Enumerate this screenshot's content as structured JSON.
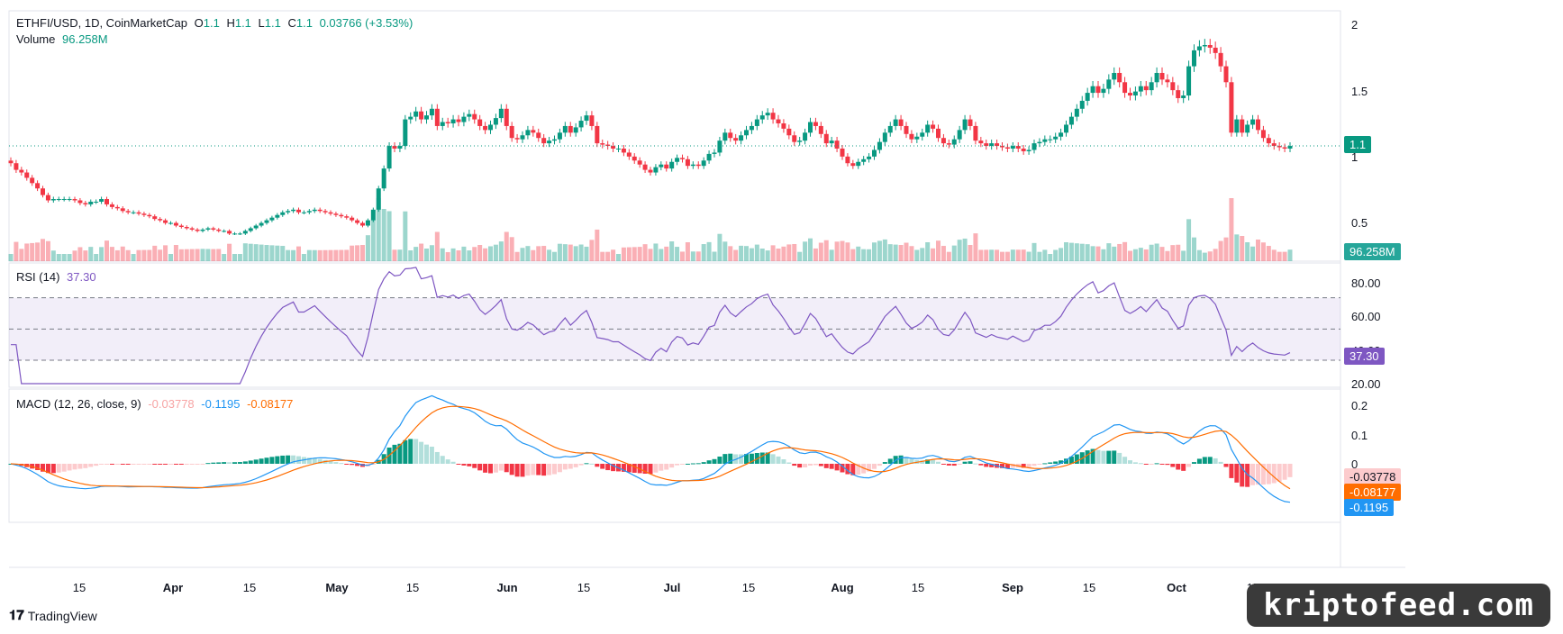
{
  "header": {
    "symbol": "ETHFI/USD, 1D, CoinMarketCap",
    "o_label": "O",
    "o_val": "1.1",
    "h_label": "H",
    "h_val": "1.1",
    "l_label": "L",
    "l_val": "1.1",
    "c_label": "C",
    "c_val": "1.1",
    "change": "0.03766 (+3.53%)",
    "volume_label": "Volume",
    "volume_val": "96.258M"
  },
  "rsi_legend": {
    "label": "RSI (14)",
    "value": "37.30"
  },
  "macd_legend": {
    "label": "MACD (12, 26, close, 9)",
    "hist": "-0.03778",
    "macd": "-0.1195",
    "signal": "-0.08177"
  },
  "badges": {
    "price": "1.1",
    "volume": "96.258M",
    "rsi": "37.30",
    "macd_hist": "-0.03778",
    "macd_signal": "-0.08177",
    "macd_line": "-0.1195"
  },
  "branding": {
    "tv": "TradingView",
    "watermark": "kriptofeed.com"
  },
  "colors": {
    "up": "#089981",
    "down": "#f23645",
    "rsi": "#7e57c2",
    "macd": "#2196f3",
    "signal": "#ff6d00"
  },
  "chart_data": [
    {
      "type": "candlestick",
      "title": "ETHFI/USD, 1D, CoinMarketCap",
      "y_ticks": [
        "2",
        "1.5",
        "1",
        "0.5"
      ],
      "x_ticks": [
        "15",
        "Apr",
        "15",
        "May",
        "15",
        "Jun",
        "15",
        "Jul",
        "15",
        "Aug",
        "15",
        "Sep",
        "15",
        "Oct",
        "15"
      ],
      "ylim": [
        0.3,
        2.05
      ],
      "close_series": [
        0.97,
        0.92,
        0.9,
        0.86,
        0.82,
        0.78,
        0.73,
        0.69,
        0.7,
        0.7,
        0.7,
        0.7,
        0.69,
        0.67,
        0.66,
        0.68,
        0.68,
        0.7,
        0.66,
        0.64,
        0.63,
        0.61,
        0.6,
        0.6,
        0.59,
        0.58,
        0.57,
        0.55,
        0.54,
        0.52,
        0.52,
        0.5,
        0.49,
        0.48,
        0.47,
        0.46,
        0.47,
        0.48,
        0.47,
        0.46,
        0.46,
        0.44,
        0.44,
        0.44,
        0.46,
        0.48,
        0.5,
        0.52,
        0.54,
        0.56,
        0.58,
        0.6,
        0.61,
        0.62,
        0.6,
        0.6,
        0.61,
        0.62,
        0.61,
        0.6,
        0.59,
        0.58,
        0.57,
        0.56,
        0.54,
        0.52,
        0.5,
        0.54,
        0.62,
        0.78,
        0.93,
        1.1,
        1.08,
        1.1,
        1.3,
        1.32,
        1.36,
        1.3,
        1.33,
        1.38,
        1.25,
        1.28,
        1.27,
        1.3,
        1.28,
        1.32,
        1.34,
        1.3,
        1.25,
        1.22,
        1.26,
        1.31,
        1.38,
        1.25,
        1.16,
        1.15,
        1.18,
        1.22,
        1.2,
        1.16,
        1.12,
        1.14,
        1.15,
        1.2,
        1.25,
        1.2,
        1.24,
        1.29,
        1.33,
        1.25,
        1.12,
        1.11,
        1.1,
        1.08,
        1.08,
        1.05,
        1.02,
        0.99,
        0.96,
        0.92,
        0.9,
        0.94,
        0.96,
        0.93,
        0.98,
        1.01,
        1.0,
        0.95,
        0.96,
        0.95,
        0.99,
        1.04,
        1.05,
        1.14,
        1.2,
        1.16,
        1.14,
        1.18,
        1.22,
        1.25,
        1.3,
        1.33,
        1.35,
        1.3,
        1.27,
        1.23,
        1.18,
        1.13,
        1.14,
        1.2,
        1.28,
        1.25,
        1.19,
        1.12,
        1.14,
        1.08,
        1.02,
        0.97,
        0.95,
        0.98,
        1.0,
        1.02,
        1.07,
        1.13,
        1.2,
        1.25,
        1.3,
        1.25,
        1.19,
        1.15,
        1.17,
        1.2,
        1.26,
        1.23,
        1.16,
        1.12,
        1.11,
        1.15,
        1.22,
        1.3,
        1.25,
        1.14,
        1.12,
        1.1,
        1.12,
        1.1,
        1.09,
        1.08,
        1.1,
        1.08,
        1.06,
        1.07,
        1.12,
        1.13,
        1.15,
        1.15,
        1.17,
        1.2,
        1.26,
        1.32,
        1.38,
        1.44,
        1.5,
        1.55,
        1.5,
        1.53,
        1.6,
        1.65,
        1.58,
        1.5,
        1.48,
        1.51,
        1.55,
        1.52,
        1.58,
        1.65,
        1.6,
        1.58,
        1.52,
        1.46,
        1.48,
        1.7,
        1.82,
        1.85,
        1.86,
        1.84,
        1.8,
        1.7,
        1.58,
        1.2,
        1.3,
        1.2,
        1.26,
        1.3,
        1.22,
        1.16,
        1.12,
        1.1,
        1.09,
        1.08,
        1.1
      ]
    },
    {
      "type": "line",
      "title": "RSI (14)",
      "y_ticks": [
        "80.00",
        "60.00",
        "40.00",
        "20.00"
      ],
      "ylim": [
        15,
        90
      ],
      "bands": [
        30,
        50,
        70
      ],
      "last": 37.3
    },
    {
      "type": "line",
      "title": "MACD (12, 26, close, 9)",
      "y_ticks": [
        "0.2",
        "0.1",
        "0",
        "-0.1"
      ],
      "ylim": [
        -0.17,
        0.22
      ],
      "last": {
        "histogram": -0.03778,
        "macd": -0.1195,
        "signal": -0.08177
      }
    }
  ]
}
